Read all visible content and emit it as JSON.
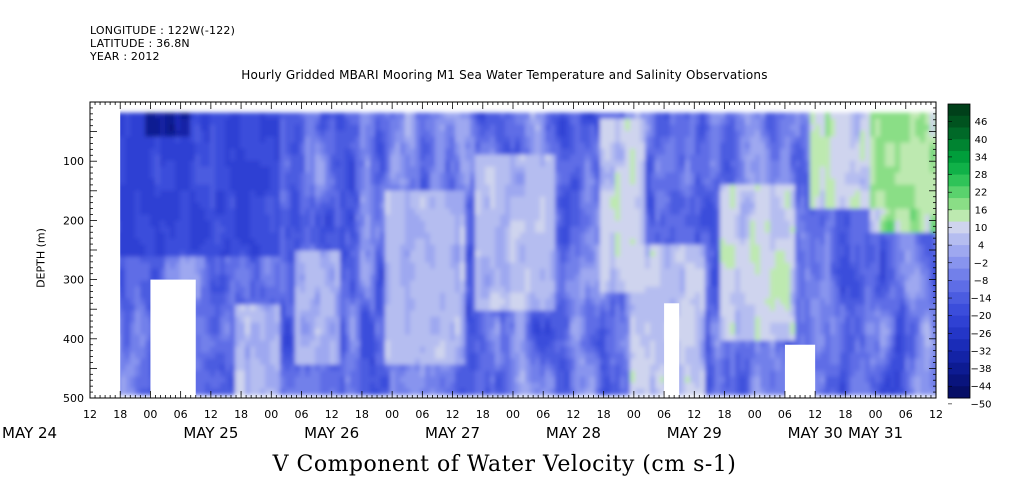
{
  "header": {
    "longitude": "LONGITUDE : 122W(-122)",
    "latitude": "LATITUDE : 36.8N",
    "year": "YEAR : 2012"
  },
  "chart_data": {
    "type": "heatmap",
    "title": "Hourly Gridded MBARI Mooring M1 Sea Water Temperature and Salinity Observations",
    "footer_label": "V Component of Water Velocity (cm s-1)",
    "ylabel": "DEPTH (m)",
    "y_axis": {
      "range": [
        500,
        0
      ],
      "inverted": true,
      "ticks": [
        100,
        200,
        300,
        400,
        500
      ]
    },
    "x_axis": {
      "start": "2012-05-24T12:00",
      "end": "2012-05-31T12:00",
      "hour_ticks": [
        "12",
        "18",
        "00",
        "06",
        "12",
        "18",
        "00",
        "06",
        "12",
        "18",
        "00",
        "06",
        "12",
        "18",
        "00",
        "06",
        "12",
        "18",
        "00",
        "06",
        "12",
        "18",
        "00",
        "06",
        "12",
        "18",
        "00",
        "06",
        "12"
      ],
      "day_labels": [
        {
          "label": "MAY 24",
          "at": "2012-05-24T00:00"
        },
        {
          "label": "MAY 25",
          "at": "2012-05-25T12:00"
        },
        {
          "label": "MAY 26",
          "at": "2012-05-26T12:00"
        },
        {
          "label": "MAY 27",
          "at": "2012-05-27T12:00"
        },
        {
          "label": "MAY 28",
          "at": "2012-05-28T12:00"
        },
        {
          "label": "MAY 29",
          "at": "2012-05-29T12:00"
        },
        {
          "label": "MAY 30",
          "at": "2012-05-30T12:00"
        },
        {
          "label": "MAY 31",
          "at": "2012-05-31T00:00"
        }
      ]
    },
    "colorbar": {
      "labels": [
        "46",
        "40",
        "34",
        "28",
        "22",
        "16",
        "10",
        "4",
        "-2",
        "-8",
        "-14",
        "-20",
        "-26",
        "-32",
        "-38",
        "-44",
        "-50"
      ],
      "colors": [
        "#00401a",
        "#00531f",
        "#006928",
        "#008431",
        "#009e3b",
        "#10b148",
        "#2fc358",
        "#5ad26d",
        "#8ade86",
        "#bde9b0",
        "#cfd4ee",
        "#b5bdf0",
        "#9ea8f0",
        "#8894ee",
        "#7280ea",
        "#5e6de6",
        "#4b5ce0",
        "#3b4ddb",
        "#2f41d3",
        "#2436c7",
        "#1a2cb8",
        "#1323a6",
        "#0d1b92",
        "#09147d",
        "#060e66"
      ]
    },
    "field_description": "V velocity field; mostly weak negative (blue, about -2 to -20) with bands of positive (green, 4 to 28); strongest negatives near surface May 24-25, strongest positives near surface May 30-31; white gaps are missing data.",
    "bands": [
      {
        "start": "2012-05-25T18:00",
        "end": "2012-05-26T00:00",
        "depth": [
          350,
          480
        ],
        "value": 8
      },
      {
        "start": "2012-05-26T06:00",
        "end": "2012-05-26T12:00",
        "depth": [
          260,
          420
        ],
        "value": 6
      },
      {
        "start": "2012-05-27T00:00",
        "end": "2012-05-27T12:00",
        "depth": [
          160,
          420
        ],
        "value": 7
      },
      {
        "start": "2012-05-27T18:00",
        "end": "2012-05-28T06:00",
        "depth": [
          100,
          330
        ],
        "value": 8
      },
      {
        "start": "2012-05-28T18:00",
        "end": "2012-05-29T00:00",
        "depth": [
          40,
          300
        ],
        "value": 12
      },
      {
        "start": "2012-05-29T00:00",
        "end": "2012-05-29T12:00",
        "depth": [
          250,
          470
        ],
        "value": 10
      },
      {
        "start": "2012-05-29T18:00",
        "end": "2012-05-30T06:00",
        "depth": [
          150,
          380
        ],
        "value": 12
      },
      {
        "start": "2012-05-30T12:00",
        "end": "2012-05-31T06:00",
        "depth": [
          20,
          160
        ],
        "value": 14
      },
      {
        "start": "2012-05-31T00:00",
        "end": "2012-05-31T12:00",
        "depth": [
          30,
          200
        ],
        "value": 18
      },
      {
        "start": "2012-05-24T18:00",
        "end": "2012-05-26T00:00",
        "depth": [
          20,
          240
        ],
        "value": -22
      },
      {
        "start": "2012-05-25T00:00",
        "end": "2012-05-25T06:00",
        "depth": [
          20,
          40
        ],
        "value": -40
      }
    ],
    "missing_regions": [
      {
        "start": "2012-05-24T12:00",
        "end": "2012-05-24T18:00",
        "depth": [
          0,
          500
        ]
      },
      {
        "start": "2012-05-25T00:00",
        "end": "2012-05-25T09:00",
        "depth": [
          300,
          500
        ]
      },
      {
        "start": "2012-05-29T06:00",
        "end": "2012-05-29T09:00",
        "depth": [
          340,
          500
        ]
      },
      {
        "start": "2012-05-30T06:00",
        "end": "2012-05-30T12:00",
        "depth": [
          410,
          500
        ]
      }
    ]
  }
}
